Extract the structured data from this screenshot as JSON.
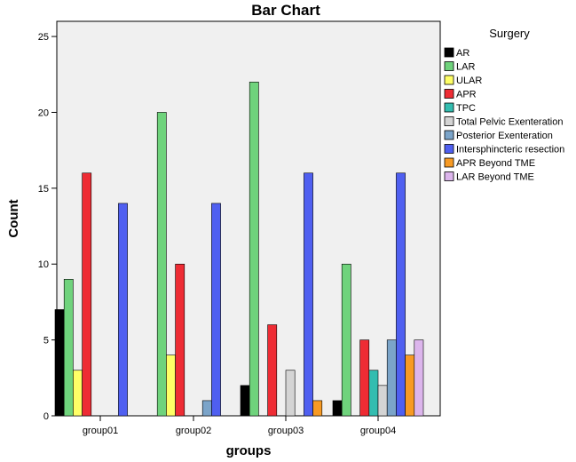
{
  "chart_data": {
    "type": "bar",
    "title": "Bar Chart",
    "xlabel": "groups",
    "ylabel": "Count",
    "ylim": [
      0,
      26
    ],
    "yticks": [
      0,
      5,
      10,
      15,
      20,
      25
    ],
    "grid": false,
    "legend_title": "Surgery",
    "legend_position": "right",
    "plot_background": "#f0f0f0",
    "categories": [
      "group01",
      "group02",
      "group03",
      "group04"
    ],
    "series": [
      {
        "name": "AR",
        "color": "#000000",
        "values": [
          7,
          0,
          2,
          1
        ]
      },
      {
        "name": "LAR",
        "color": "#6fd37c",
        "values": [
          9,
          20,
          22,
          10
        ]
      },
      {
        "name": "ULAR",
        "color": "#ffff66",
        "values": [
          3,
          4,
          0,
          0
        ]
      },
      {
        "name": "APR",
        "color": "#ee2c34",
        "values": [
          16,
          10,
          6,
          5
        ]
      },
      {
        "name": "TPC",
        "color": "#33bdb0",
        "values": [
          0,
          0,
          0,
          3
        ]
      },
      {
        "name": "Total Pelvic Exenteration",
        "color": "#d4d4d4",
        "values": [
          0,
          0,
          3,
          2
        ]
      },
      {
        "name": "Posterior Exenteration",
        "color": "#7ba4c9",
        "values": [
          0,
          1,
          0,
          5
        ]
      },
      {
        "name": "Intersphincteric resection",
        "color": "#4f5ff0",
        "values": [
          14,
          14,
          16,
          16
        ]
      },
      {
        "name": "APR Beyond TME",
        "color": "#f79a24",
        "values": [
          0,
          0,
          1,
          4
        ]
      },
      {
        "name": "LAR Beyond TME",
        "color": "#dcb5ec",
        "values": [
          0,
          0,
          0,
          5
        ]
      }
    ]
  }
}
